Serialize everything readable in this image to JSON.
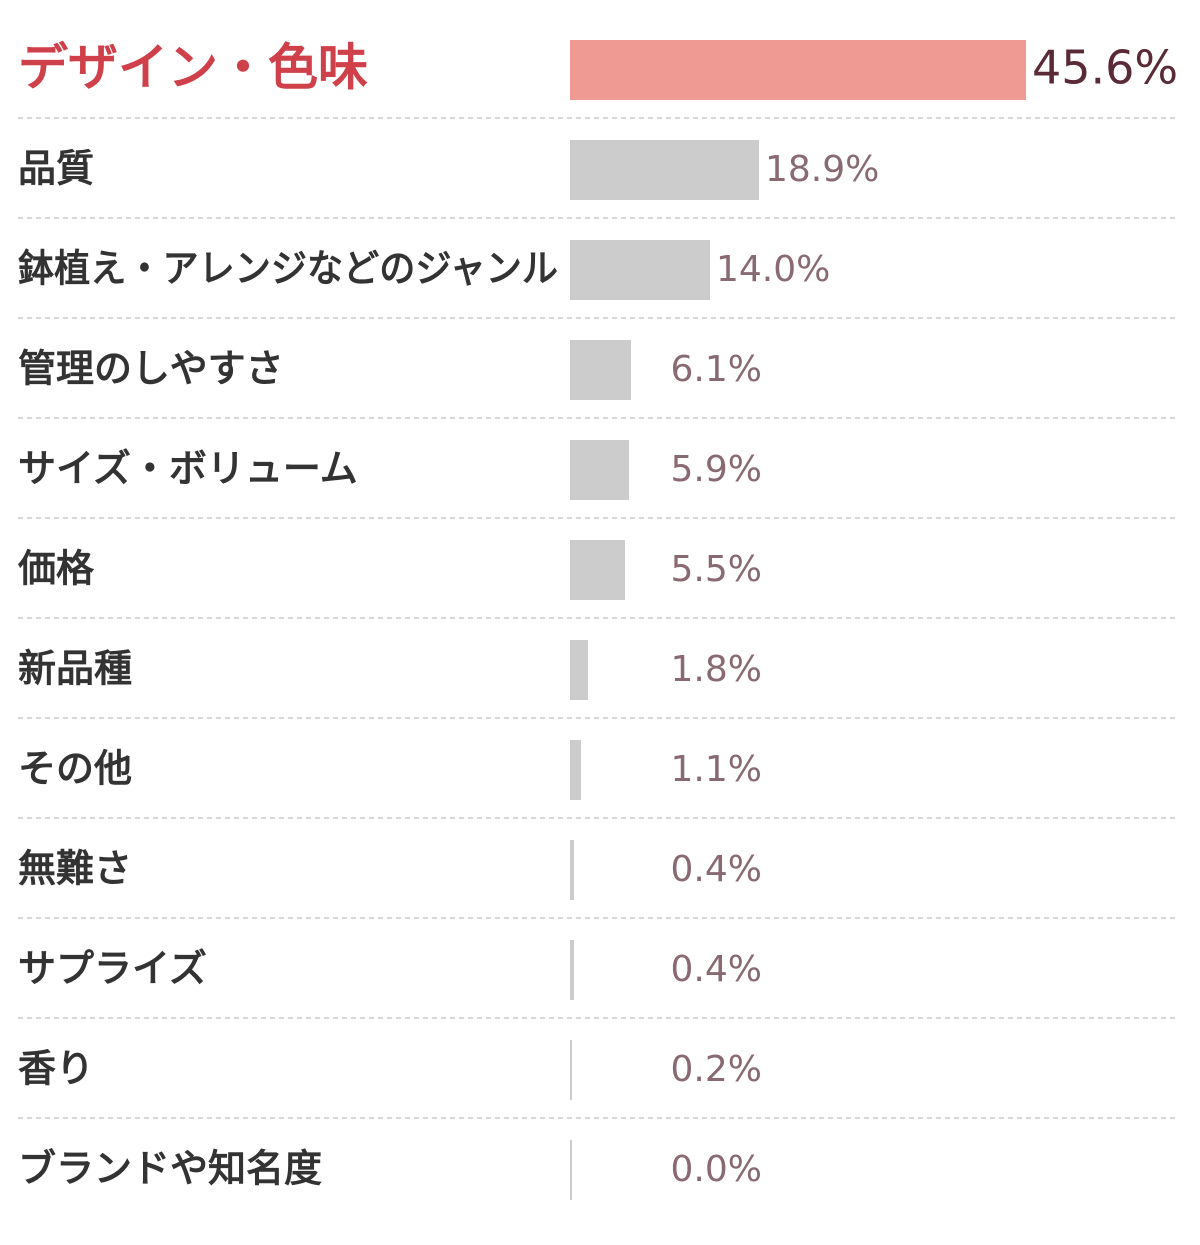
{
  "chart_data": {
    "type": "bar",
    "orientation": "horizontal",
    "categories": [
      "デザイン・色味",
      "品質",
      "鉢植え・アレンジなどのジャンル",
      "管理のしやすさ",
      "サイズ・ボリューム",
      "価格",
      "新品種",
      "その他",
      "無難さ",
      "サプライズ",
      "香り",
      "ブランドや知名度"
    ],
    "values": [
      45.6,
      18.9,
      14.0,
      6.1,
      5.9,
      5.5,
      1.8,
      1.1,
      0.4,
      0.4,
      0.2,
      0.0
    ],
    "value_labels": [
      "45.6%",
      "18.9%",
      "14.0%",
      "6.1%",
      "5.9%",
      "5.5%",
      "1.8%",
      "1.1%",
      "0.4%",
      "0.4%",
      "0.2%",
      "0.0%"
    ],
    "colors": [
      "#f09a94",
      "#cccccc",
      "#cccccc",
      "#cccccc",
      "#cccccc",
      "#cccccc",
      "#cccccc",
      "#cccccc",
      "#cccccc",
      "#cccccc",
      "#cccccc",
      "#cccccc"
    ],
    "xlim": [
      0,
      61
    ]
  }
}
